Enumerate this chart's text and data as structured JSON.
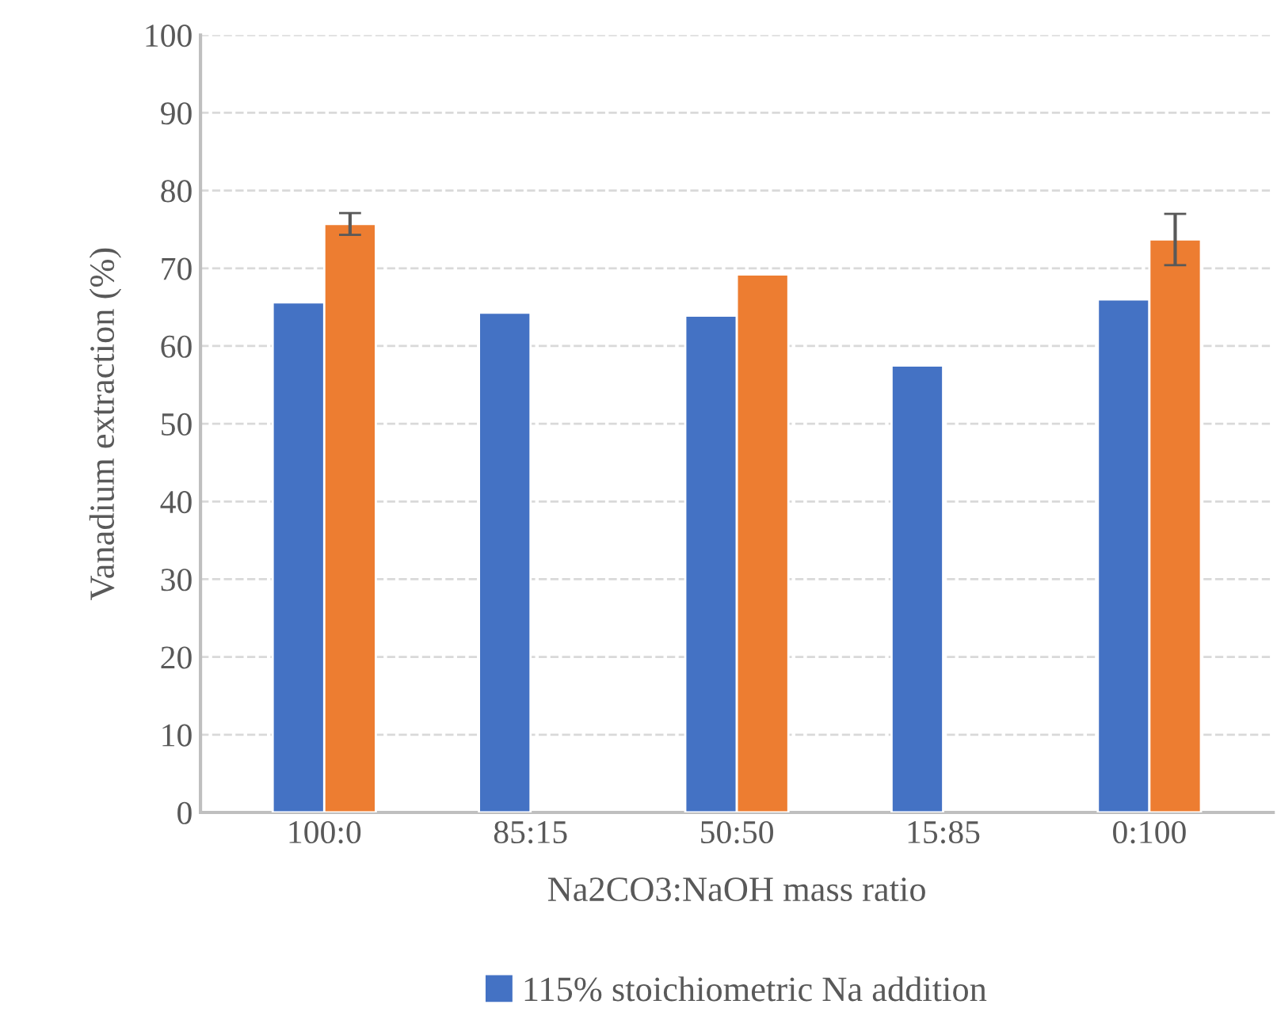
{
  "chart_data": {
    "type": "bar",
    "xlabel": "Na2CO3:NaOH mass ratio",
    "ylabel": "Vanadium extraction (%)",
    "categories": [
      "100:0",
      "85:15",
      "50:50",
      "15:85",
      "0:100"
    ],
    "series": [
      {
        "name": "115% stoichiometric Na addition",
        "color": "#4472c4",
        "values": [
          65.6,
          64.3,
          63.9,
          57.5,
          66.0
        ]
      },
      {
        "color": "#ed7d31",
        "values": [
          75.7,
          null,
          69.2,
          null,
          73.7
        ],
        "errors": [
          1.4,
          null,
          null,
          null,
          3.3
        ]
      }
    ],
    "ylim": [
      0,
      100
    ],
    "yticks": [
      0,
      10,
      20,
      30,
      40,
      50,
      60,
      70,
      80,
      90,
      100
    ],
    "grid": "y",
    "legend": "bottom"
  }
}
